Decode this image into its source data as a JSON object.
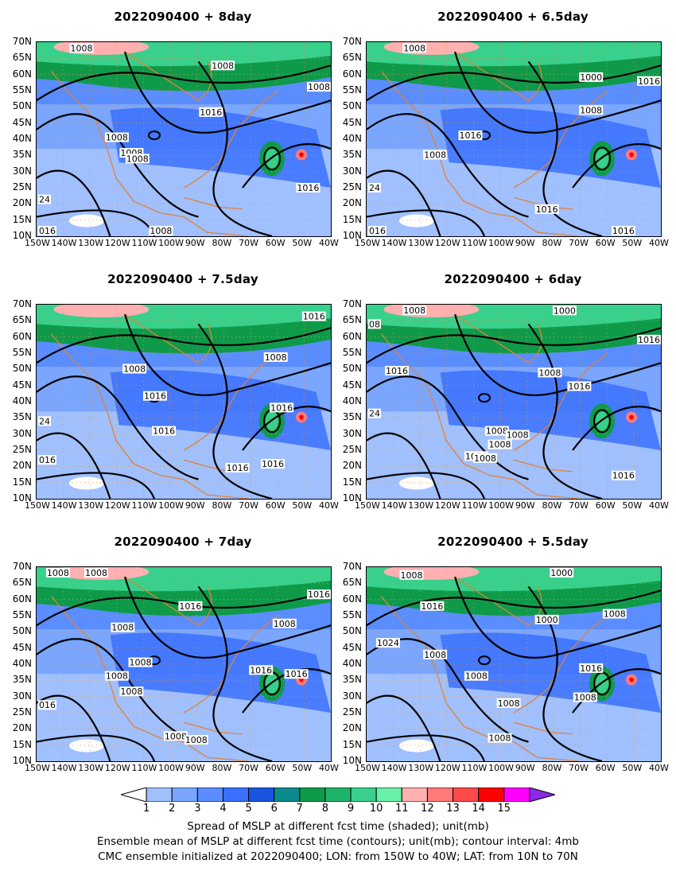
{
  "panels": [
    {
      "title": "2022090400  +  8day",
      "labels": [
        [
          "1008",
          0.15,
          0.03
        ],
        [
          "1008",
          0.63,
          0.12
        ],
        [
          "1008",
          0.96,
          0.23
        ],
        [
          "1016",
          0.59,
          0.36
        ],
        [
          "1008",
          0.27,
          0.49
        ],
        [
          "1008",
          0.32,
          0.57
        ],
        [
          "1008",
          0.34,
          0.6
        ],
        [
          "1016",
          0.92,
          0.75
        ],
        [
          "24",
          0.02,
          0.81
        ],
        [
          "1008",
          0.42,
          1.15
        ],
        [
          "016",
          0.01,
          1.23
        ]
      ]
    },
    {
      "title": "2022090400  +  6.5day",
      "labels": [
        [
          "1008",
          0.16,
          0.03
        ],
        [
          "1000",
          0.76,
          0.18
        ],
        [
          "1016",
          0.97,
          0.2
        ],
        [
          "1008",
          0.76,
          0.35
        ],
        [
          "1016",
          0.35,
          0.48
        ],
        [
          "1008",
          0.23,
          0.58
        ],
        [
          "24",
          0.02,
          0.75
        ],
        [
          "1016",
          0.61,
          0.86
        ],
        [
          "016",
          0.02,
          1.04
        ],
        [
          "1016",
          0.87,
          1.35
        ]
      ]
    },
    {
      "title": "2022090400  +  7.5day",
      "labels": [
        [
          "1016",
          0.94,
          0.06
        ],
        [
          "1008",
          0.81,
          0.27
        ],
        [
          "1008",
          0.33,
          0.33
        ],
        [
          "1016",
          0.4,
          0.47
        ],
        [
          "1016",
          0.83,
          0.53
        ],
        [
          "24",
          0.02,
          0.6
        ],
        [
          "1016",
          0.43,
          0.65
        ],
        [
          "1016",
          0.68,
          0.84
        ],
        [
          "1016",
          0.8,
          0.82
        ],
        [
          "016",
          0.02,
          0.8
        ]
      ]
    },
    {
      "title": "2022090400  +  6day",
      "labels": [
        [
          "1008",
          0.16,
          0.02
        ],
        [
          "1000",
          0.67,
          0.03
        ],
        [
          "08",
          0.02,
          0.1
        ],
        [
          "1016",
          0.96,
          0.18
        ],
        [
          "1016",
          0.1,
          0.34
        ],
        [
          "1008",
          0.62,
          0.35
        ],
        [
          "1016",
          0.72,
          0.42
        ],
        [
          "24",
          0.02,
          0.56
        ],
        [
          "1008",
          0.44,
          0.65
        ],
        [
          "1008",
          0.51,
          0.67
        ],
        [
          "1008",
          0.45,
          0.72
        ],
        [
          "1016",
          0.37,
          0.78
        ],
        [
          "1008",
          0.4,
          0.79
        ],
        [
          "1016",
          0.87,
          0.88
        ]
      ]
    },
    {
      "title": "2022090400  +  7day",
      "labels": [
        [
          "1008",
          0.07,
          0.02
        ],
        [
          "1008",
          0.2,
          0.01
        ],
        [
          "1016",
          0.96,
          0.14
        ],
        [
          "1016",
          0.52,
          0.2
        ],
        [
          "1008",
          0.84,
          0.29
        ],
        [
          "1008",
          0.29,
          0.31
        ],
        [
          "1008",
          0.35,
          0.49
        ],
        [
          "1016",
          0.76,
          0.53
        ],
        [
          "1016",
          0.88,
          0.55
        ],
        [
          "1008",
          0.27,
          0.56
        ],
        [
          "1008",
          0.32,
          0.64
        ],
        [
          "016",
          0.02,
          0.71
        ],
        [
          "1008",
          0.47,
          0.87
        ],
        [
          "1008",
          0.54,
          0.89
        ]
      ]
    },
    {
      "title": "2022090400  +  5.5day",
      "labels": [
        [
          "1008",
          0.15,
          0.04
        ],
        [
          "1000",
          0.66,
          0.01
        ],
        [
          "1016",
          0.22,
          0.2
        ],
        [
          "1008",
          0.84,
          0.24
        ],
        [
          "1000",
          0.61,
          0.27
        ],
        [
          "1024",
          0.07,
          0.39
        ],
        [
          "1008",
          0.23,
          0.45
        ],
        [
          "1016",
          0.76,
          0.52
        ],
        [
          "1008",
          0.37,
          0.56
        ],
        [
          "1008",
          0.48,
          0.7
        ],
        [
          "1008",
          0.74,
          0.67
        ],
        [
          "1008",
          0.45,
          0.88
        ]
      ]
    }
  ],
  "axes": {
    "y_ticks": [
      "70N",
      "65N",
      "60N",
      "55N",
      "50N",
      "45N",
      "40N",
      "35N",
      "30N",
      "25N",
      "20N",
      "15N",
      "10N"
    ],
    "x_ticks": [
      "150W",
      "140W",
      "130W",
      "120W",
      "110W",
      "100W",
      "90W",
      "80W",
      "70W",
      "60W",
      "50W",
      "40W"
    ]
  },
  "colorbar": {
    "levels": [
      "1",
      "2",
      "3",
      "4",
      "5",
      "6",
      "7",
      "8",
      "9",
      "10",
      "11",
      "12",
      "13",
      "14",
      "15"
    ],
    "colors": [
      "#ffffff",
      "#a0c0ff",
      "#7aa6ff",
      "#5a8dff",
      "#3a70ff",
      "#1a55e0",
      "#0a8a8a",
      "#0f9a4a",
      "#1fb36a",
      "#38d08a",
      "#6af0a8",
      "#ffb0b0",
      "#ff7a7a",
      "#ff4a4a",
      "#ff0000",
      "#ff00ff",
      "#8a2be2"
    ]
  },
  "caption": {
    "line1": "Spread of MSLP at different fcst time (shaded); unit(mb)",
    "line2": "Ensemble mean of MSLP at different fcst time (contours); unit(mb); contour interval: 4mb",
    "line3": "CMC ensemble initialized at 2022090400; LON: from 150W to 40W; LAT: from 10N to 70N"
  }
}
